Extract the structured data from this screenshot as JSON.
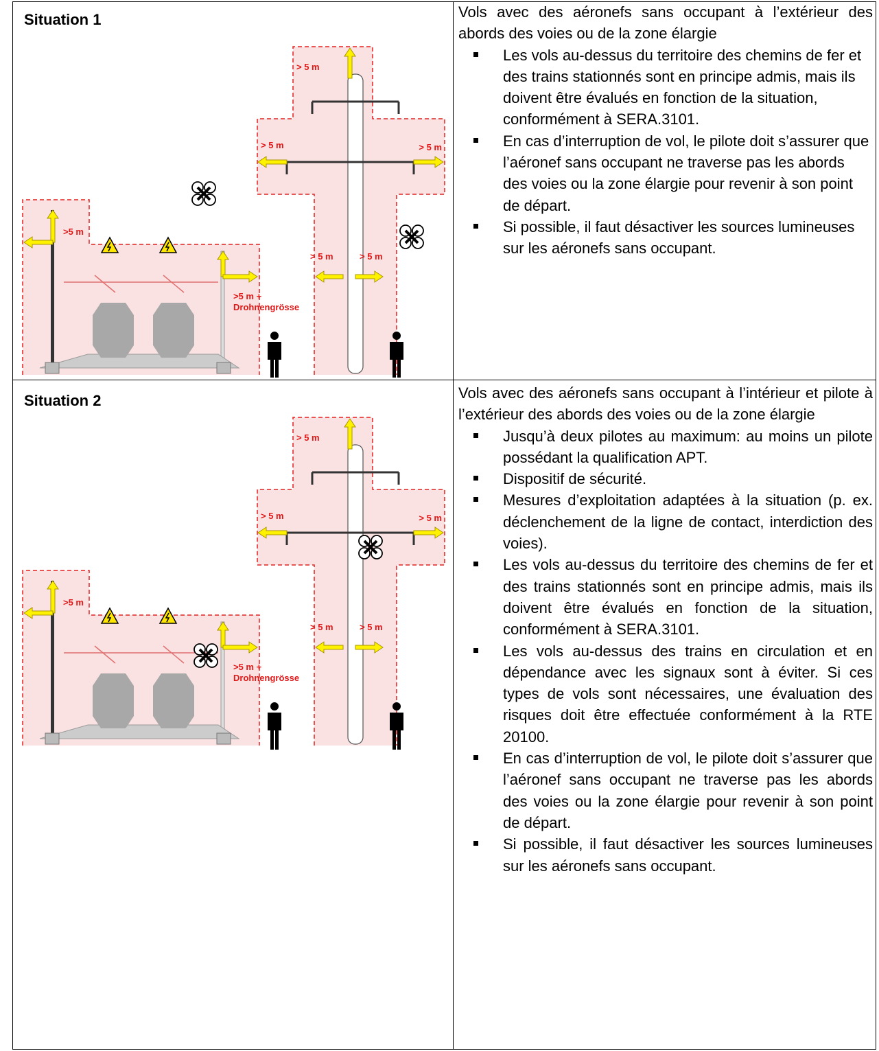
{
  "rows": [
    {
      "title": "Situation 1",
      "diagram": {
        "labels": [
          "> 5 m",
          ">5 m",
          "> 5 m",
          "> 5 m",
          "> 5 m",
          "> 5 m",
          ">5 m +",
          "Drohnengrösse"
        ]
      },
      "intro": "Vols avec des aéronefs sans occupant à l’extérieur des abords des voies ou de la zone élargie",
      "bullets": [
        "Les vols au-dessus du territoire des chemins de fer et des trains stationnés sont en principe admis, mais ils doivent être évalués en fonction de la situation, conformément à SERA.3101.",
        "En cas d’interruption de vol, le pilote doit s’assurer que l’aéronef sans occupant ne traverse pas les abords des voies ou la zone élargie pour revenir à son point de départ.",
        "Si possible, il faut désactiver les sources lumineuses sur les aéronefs sans occupant."
      ]
    },
    {
      "title": "Situation 2",
      "diagram": {
        "labels": [
          "> 5 m",
          ">5 m",
          "> 5 m",
          "> 5 m",
          "> 5 m",
          "> 5 m",
          ">5 m +",
          "Drohnengrösse"
        ]
      },
      "intro": "Vols avec des aéronefs sans occupant à l’intérieur et pilote à l’extérieur des abords des voies ou de la zone élargie",
      "bullets": [
        "Jusqu’à deux pilotes au maximum: au moins un pilote possédant la qualification APT.",
        "Dispositif de sécurité.",
        "Mesures d’exploitation adaptées à la situation (p. ex. déclenchement de la ligne de contact, interdiction des voies).",
        "Les vols au-dessus du territoire des chemins de fer et des trains stationnés sont en principe admis, mais ils doivent être évalués en fonction de la situation, conformément à SERA.3101.",
        "Les vols au-dessus des trains en circulation et en dépendance avec les signaux sont à éviter. Si ces types de vols sont nécessaires, une évaluation des risques doit être effectuée conformément à la RTE 20100.",
        "En cas d’interruption de vol, le pilote doit s’assurer que l’aéronef sans occupant ne traverse pas les abords des voies ou la zone élargie pour revenir à son point de départ.",
        "Si possible, il faut désactiver les sources lumineuses sur les aéronefs sans occupant."
      ]
    }
  ]
}
